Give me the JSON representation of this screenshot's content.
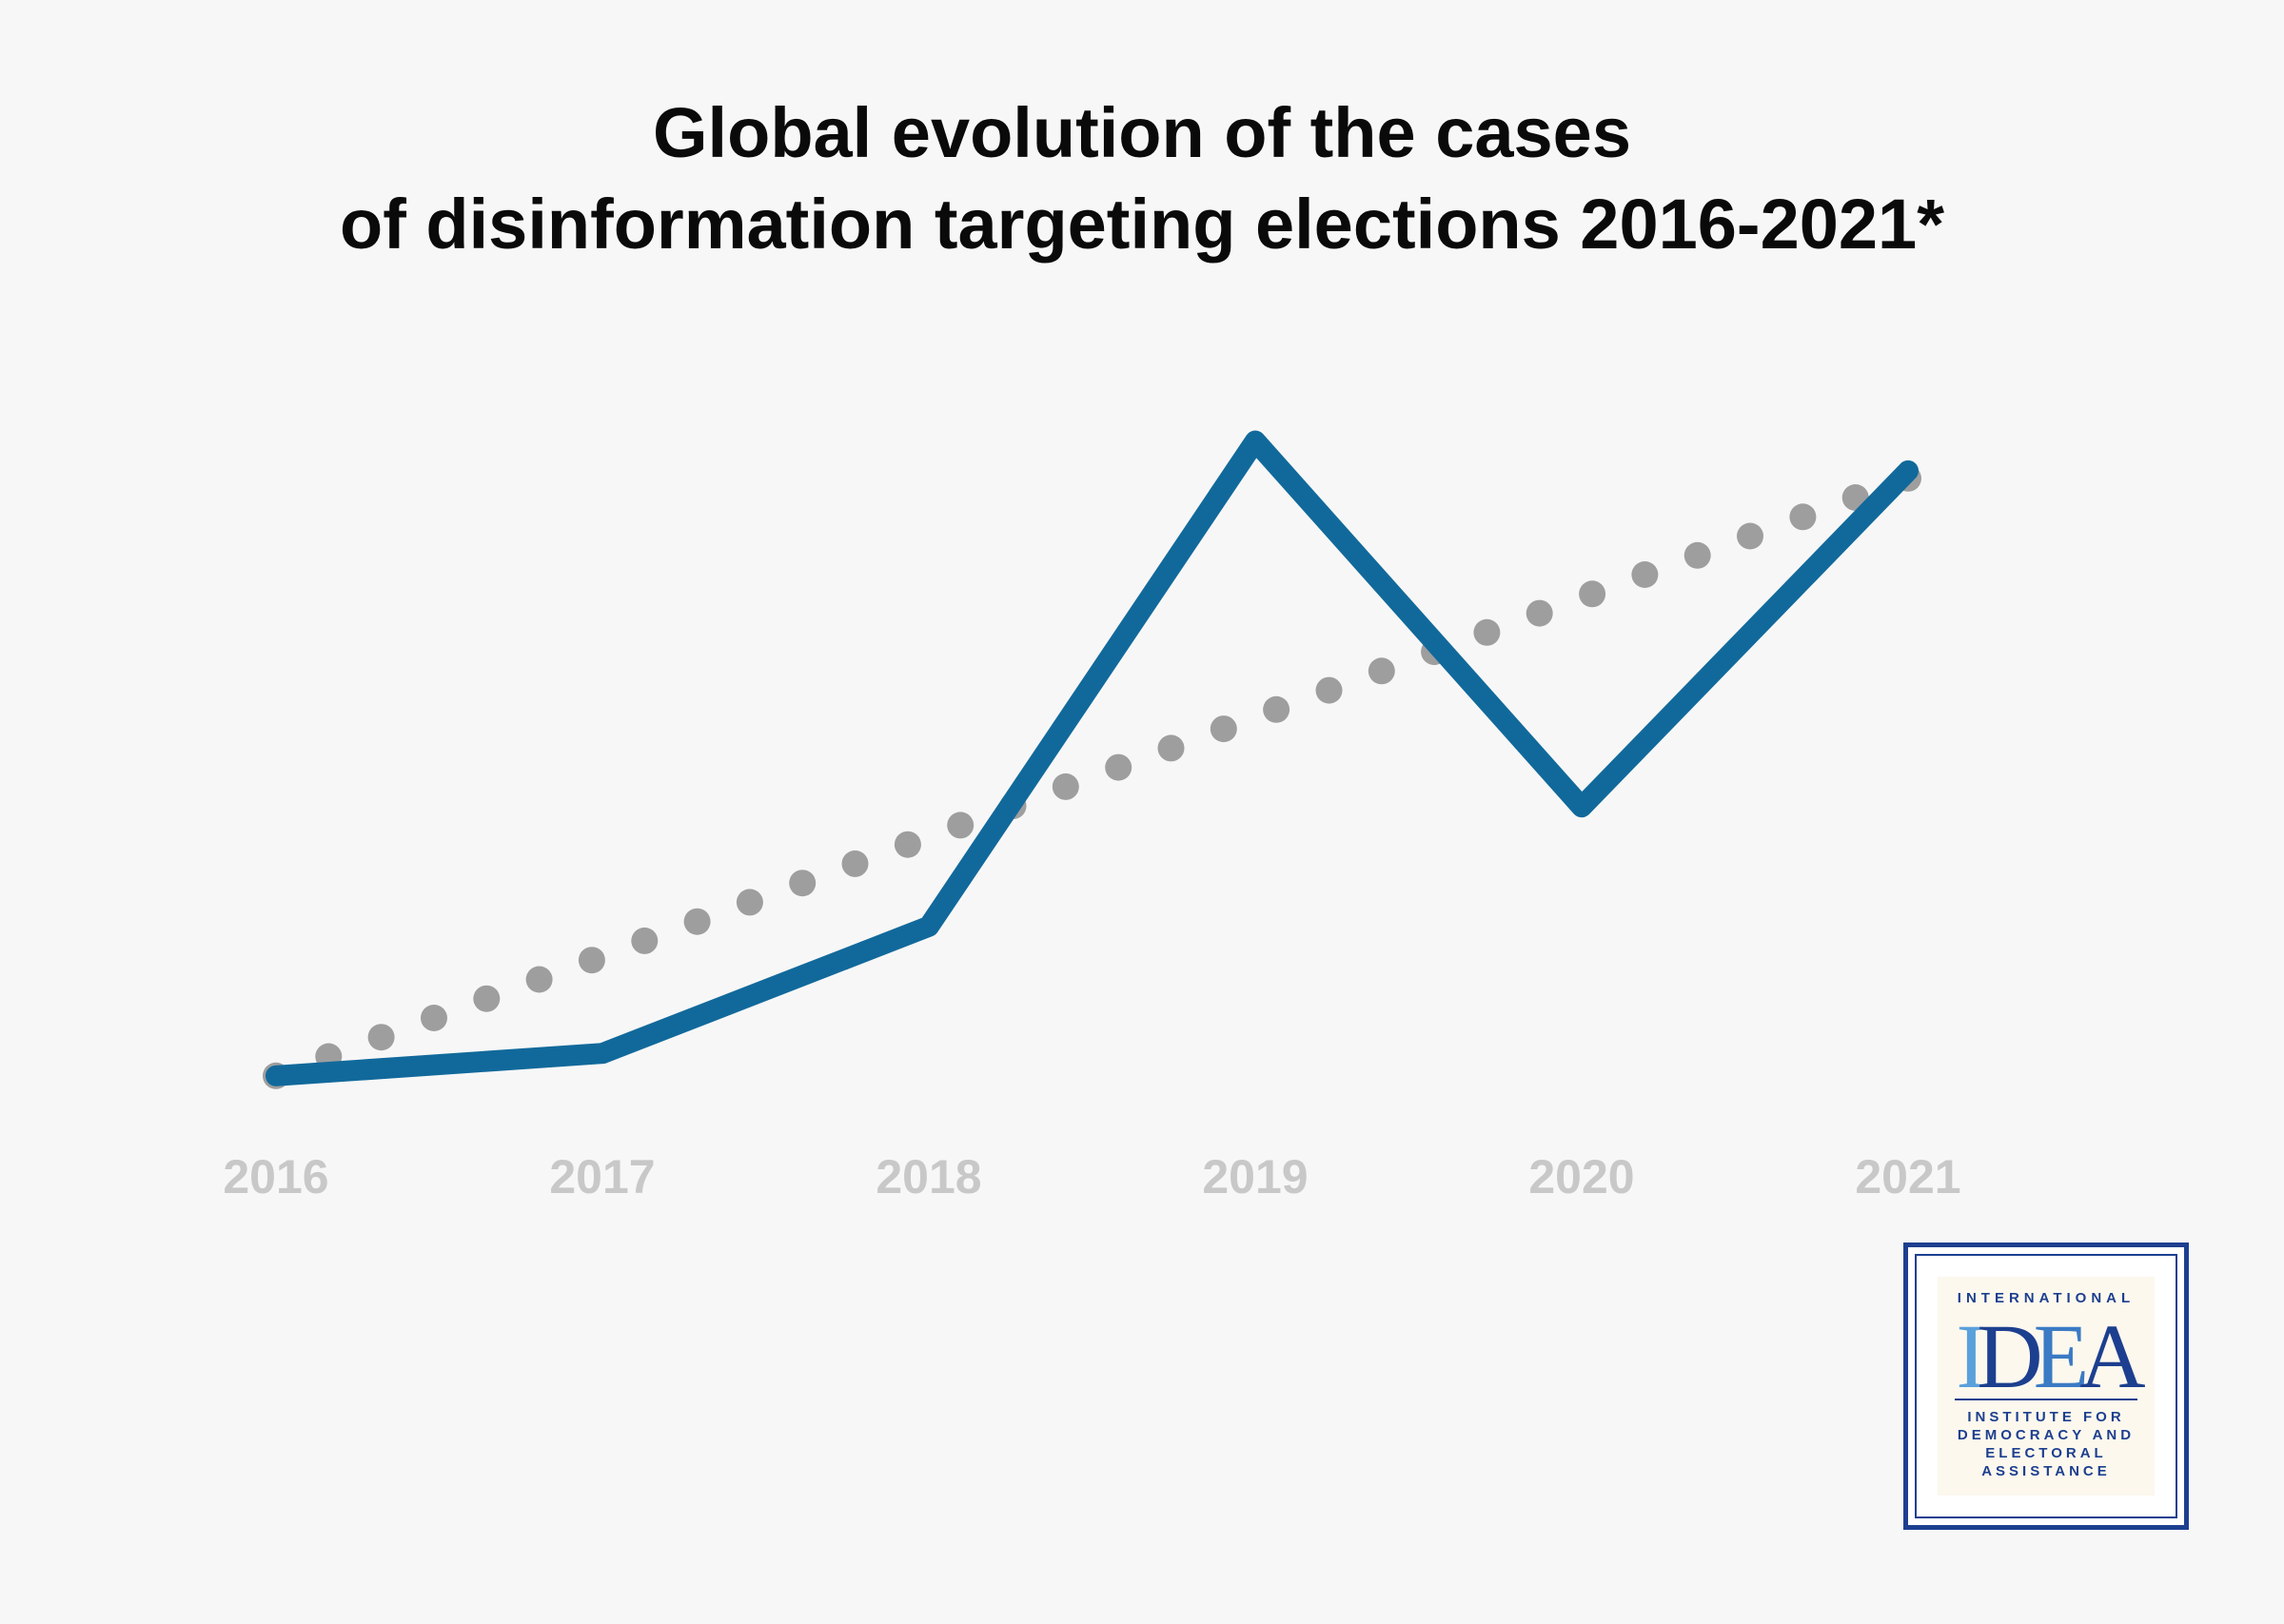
{
  "chart_data": {
    "type": "line",
    "title": [
      "Global evolution of the cases",
      "of disinformation targeting elections 2016-2021*"
    ],
    "categories": [
      "2016",
      "2017",
      "2018",
      "2019",
      "2020",
      "2021"
    ],
    "series": [
      {
        "values": [
          5,
          8,
          25,
          90,
          41,
          86
        ],
        "color": "#11699b",
        "style": "solid"
      },
      {
        "values": [
          5,
          21,
          37,
          53,
          69,
          85
        ],
        "color": "#9e9e9e",
        "style": "dotted",
        "trend": true
      }
    ],
    "ylim": [
      0,
      100
    ],
    "grid": false,
    "legend": "none"
  },
  "logo": {
    "top": "INTERNATIONAL",
    "mark": [
      "I",
      "D",
      "E",
      "A"
    ],
    "bottom": [
      "INSTITUTE FOR",
      "DEMOCRACY AND",
      "ELECTORAL",
      "ASSISTANCE"
    ],
    "color": "#1d3f8f"
  }
}
